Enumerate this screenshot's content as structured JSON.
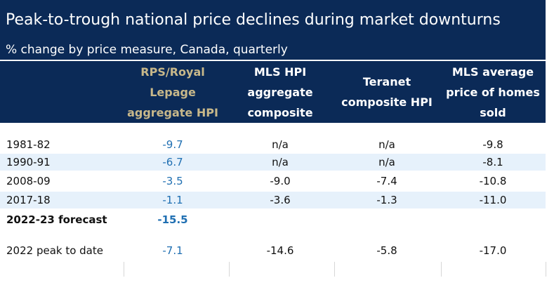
{
  "chart_data": {
    "type": "table",
    "title": "Peak-to-trough national price declines during market downturns",
    "subtitle": "% change by price measure, Canada, quarterly",
    "columns": [
      {
        "lines": [
          "RPS/Royal",
          "Lepage",
          "aggregate HPI"
        ],
        "color": "#c8b88a"
      },
      {
        "lines": [
          "MLS HPI",
          "aggregate",
          "composite"
        ],
        "color": "#ffffff"
      },
      {
        "lines": [
          "Teranet",
          "composite HPI"
        ],
        "color": "#ffffff"
      },
      {
        "lines": [
          "MLS average",
          "price of homes",
          "sold"
        ],
        "color": "#ffffff"
      }
    ],
    "rows": [
      {
        "label": "1981-82",
        "values": [
          "-9.7",
          "n/a",
          "n/a",
          "-9.8"
        ]
      },
      {
        "label": "1990-91",
        "values": [
          "-6.7",
          "n/a",
          "n/a",
          "-8.1"
        ]
      },
      {
        "label": "2008-09",
        "values": [
          "-3.5",
          "-9.0",
          "-7.4",
          "-10.8"
        ]
      },
      {
        "label": "2017-18",
        "values": [
          "-1.1",
          "-3.6",
          "-1.3",
          "-11.0"
        ]
      },
      {
        "label": "2022-23 forecast",
        "values": [
          "-15.5",
          "",
          "",
          ""
        ]
      },
      {
        "label": "2022 peak to date",
        "values": [
          "-7.1",
          "-14.6",
          "-5.8",
          "-17.0"
        ]
      }
    ]
  },
  "colors": {
    "banner": "#0b2a57",
    "alt_row": "#e6f1fb",
    "accent_value": "#1f6fb2",
    "gold_header": "#c8b88a"
  }
}
